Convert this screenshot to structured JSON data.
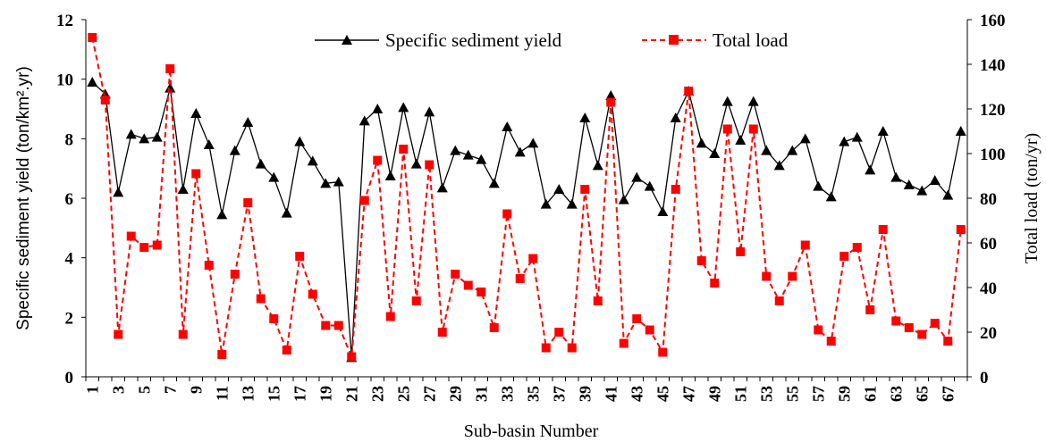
{
  "chart_data": {
    "type": "line",
    "xlabel": "Sub-basin Number",
    "ylabel": "Specific sediment yield (ton/km².yr)",
    "y2label": "Total load (ton/yr)",
    "ylim": [
      0,
      12
    ],
    "y2lim": [
      0,
      160
    ],
    "yticks": [
      "0",
      "2",
      "4",
      "6",
      "8",
      "10",
      "12"
    ],
    "y2ticks": [
      "0",
      "20",
      "40",
      "60",
      "80",
      "100",
      "120",
      "140",
      "160"
    ],
    "x": [
      1,
      2,
      3,
      4,
      5,
      6,
      7,
      8,
      9,
      10,
      11,
      12,
      13,
      14,
      15,
      16,
      17,
      18,
      19,
      20,
      21,
      22,
      23,
      24,
      25,
      26,
      27,
      28,
      29,
      30,
      31,
      32,
      33,
      34,
      35,
      36,
      37,
      38,
      39,
      40,
      41,
      42,
      43,
      44,
      45,
      46,
      47,
      48,
      49,
      50,
      51,
      52,
      53,
      54,
      55,
      56,
      57,
      58,
      59,
      60,
      61,
      62,
      63,
      64,
      65,
      66,
      67,
      68
    ],
    "xticks": [
      "1",
      "3",
      "5",
      "7",
      "9",
      "11",
      "13",
      "15",
      "17",
      "19",
      "21",
      "23",
      "25",
      "27",
      "29",
      "31",
      "33",
      "35",
      "37",
      "39",
      "41",
      "43",
      "45",
      "47",
      "49",
      "51",
      "53",
      "55",
      "57",
      "59",
      "61",
      "63",
      "65",
      "67"
    ],
    "legend": "top-center",
    "series": [
      {
        "name": "Specific sediment yield",
        "axis": "left",
        "color": "#000000",
        "marker": "triangle",
        "line": "solid",
        "values": [
          9.9,
          9.5,
          6.2,
          8.15,
          8.0,
          8.05,
          9.7,
          6.3,
          8.85,
          7.8,
          5.45,
          7.6,
          8.55,
          7.15,
          6.7,
          5.5,
          7.9,
          7.25,
          6.5,
          6.55,
          0.65,
          8.6,
          9.0,
          6.75,
          9.05,
          7.15,
          8.9,
          6.35,
          7.6,
          7.45,
          7.3,
          6.5,
          8.4,
          7.55,
          7.85,
          5.8,
          6.3,
          5.8,
          8.7,
          7.1,
          9.45,
          5.95,
          6.7,
          6.4,
          5.55,
          8.7,
          9.6,
          7.85,
          7.5,
          9.25,
          7.95,
          9.25,
          7.6,
          7.1,
          7.6,
          8.0,
          6.4,
          6.05,
          7.9,
          8.05,
          6.95,
          8.25,
          6.7,
          6.45,
          6.25,
          6.6,
          6.1,
          8.25
        ]
      },
      {
        "name": "Total load",
        "axis": "right",
        "color": "#ff0000",
        "marker": "square",
        "line": "dashed",
        "values": [
          152,
          124,
          19,
          63,
          58,
          59,
          138,
          19,
          91,
          50,
          10,
          46,
          78,
          35,
          26,
          12,
          54,
          37,
          23,
          23,
          9,
          79,
          97,
          27,
          102,
          34,
          95,
          20,
          46,
          41,
          38,
          22,
          73,
          44,
          53,
          13,
          20,
          13,
          84,
          34,
          123,
          15,
          26,
          21,
          11,
          84,
          128,
          52,
          42,
          111,
          56,
          111,
          45,
          34,
          45,
          59,
          21,
          16,
          54,
          58,
          30,
          66,
          25,
          22,
          19,
          24,
          16,
          66
        ]
      }
    ]
  }
}
